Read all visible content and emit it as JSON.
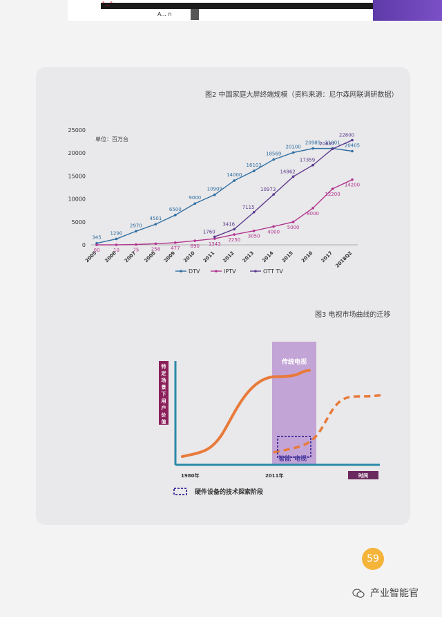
{
  "header": {
    "banner_text": "\"...\"",
    "banner_sub": "A... n"
  },
  "chart_data": [
    {
      "type": "line",
      "title": "图2 中国家庭大屏终端规模（资料来源：尼尔森网联调研数据）",
      "unit_label": "单位：百万台",
      "categories": [
        "2005",
        "2006",
        "2007",
        "2008",
        "2009",
        "2010",
        "2011",
        "2012",
        "2013",
        "2014",
        "2015",
        "2016",
        "2017",
        "2018Q2"
      ],
      "ylim": [
        0,
        25000
      ],
      "yticks": [
        0,
        5000,
        10000,
        15000,
        20000,
        25000
      ],
      "grid": false,
      "legend_position": "bottom",
      "series": [
        {
          "name": "DTV",
          "color": "#2e6fa3",
          "values": [
            345,
            1290,
            2970,
            4501,
            6500,
            9000,
            10909,
            14000,
            16103,
            18569,
            20100,
            20989,
            21001,
            20405
          ],
          "labels": [
            "345",
            "1290",
            "2970",
            "4501",
            "6500",
            "9000",
            "10909",
            "14000",
            "16103",
            "18569",
            "20100",
            "20989",
            "21001",
            "20405"
          ]
        },
        {
          "name": "IPTV",
          "color": "#b0358f",
          "values": [
            0,
            10,
            75,
            258,
            477,
            890,
            1343,
            2250,
            3050,
            4000,
            5000,
            8000,
            12200,
            14200
          ],
          "labels": [
            "00",
            "10",
            "75",
            "258",
            "477",
            "890",
            "1343",
            "2250",
            "3050",
            "4000",
            "5000",
            "8000",
            "12200",
            "14200"
          ]
        },
        {
          "name": "OTT TV",
          "color": "#5a3a8e",
          "values": [
            0,
            0,
            0,
            0,
            0,
            0,
            1760,
            3416,
            7115,
            10973,
            14862,
            17359,
            20897,
            22800
          ],
          "labels": [
            "",
            "",
            "",
            "",
            "",
            "",
            "1760",
            "3416",
            "7115",
            "10973",
            "14862",
            "17359",
            "20897",
            "22800"
          ]
        }
      ]
    },
    {
      "type": "line",
      "title": "图3 电视市场曲线的迁移",
      "ylabel": "特定场景下用户价值",
      "xlabel": "时间",
      "x_ticks": [
        "1980年",
        "2011年"
      ],
      "annotations": [
        "传统电视",
        "智能\"电视\""
      ],
      "legend": "硬件设备的技术探索阶段",
      "series": [
        {
          "name": "传统电视",
          "color": "#e87a3a",
          "style": "solid",
          "values": [
            0.08,
            0.12,
            0.5,
            0.85,
            0.9,
            0.91
          ]
        },
        {
          "name": "智能\"电视\"",
          "color": "#e87a3a",
          "style": "dashed",
          "values": [
            0.12,
            0.18,
            0.4,
            0.6,
            0.66,
            0.67
          ]
        }
      ],
      "colors": {
        "highlight": "#c3a4d6",
        "axis": "#2b8aa8",
        "label_box": "#8b1f5a",
        "time_box": "#6b2a5e",
        "legend_box": "#4a3aa0"
      }
    }
  ],
  "footer": {
    "page_number": "59",
    "wechat_name": "产业智能官"
  }
}
